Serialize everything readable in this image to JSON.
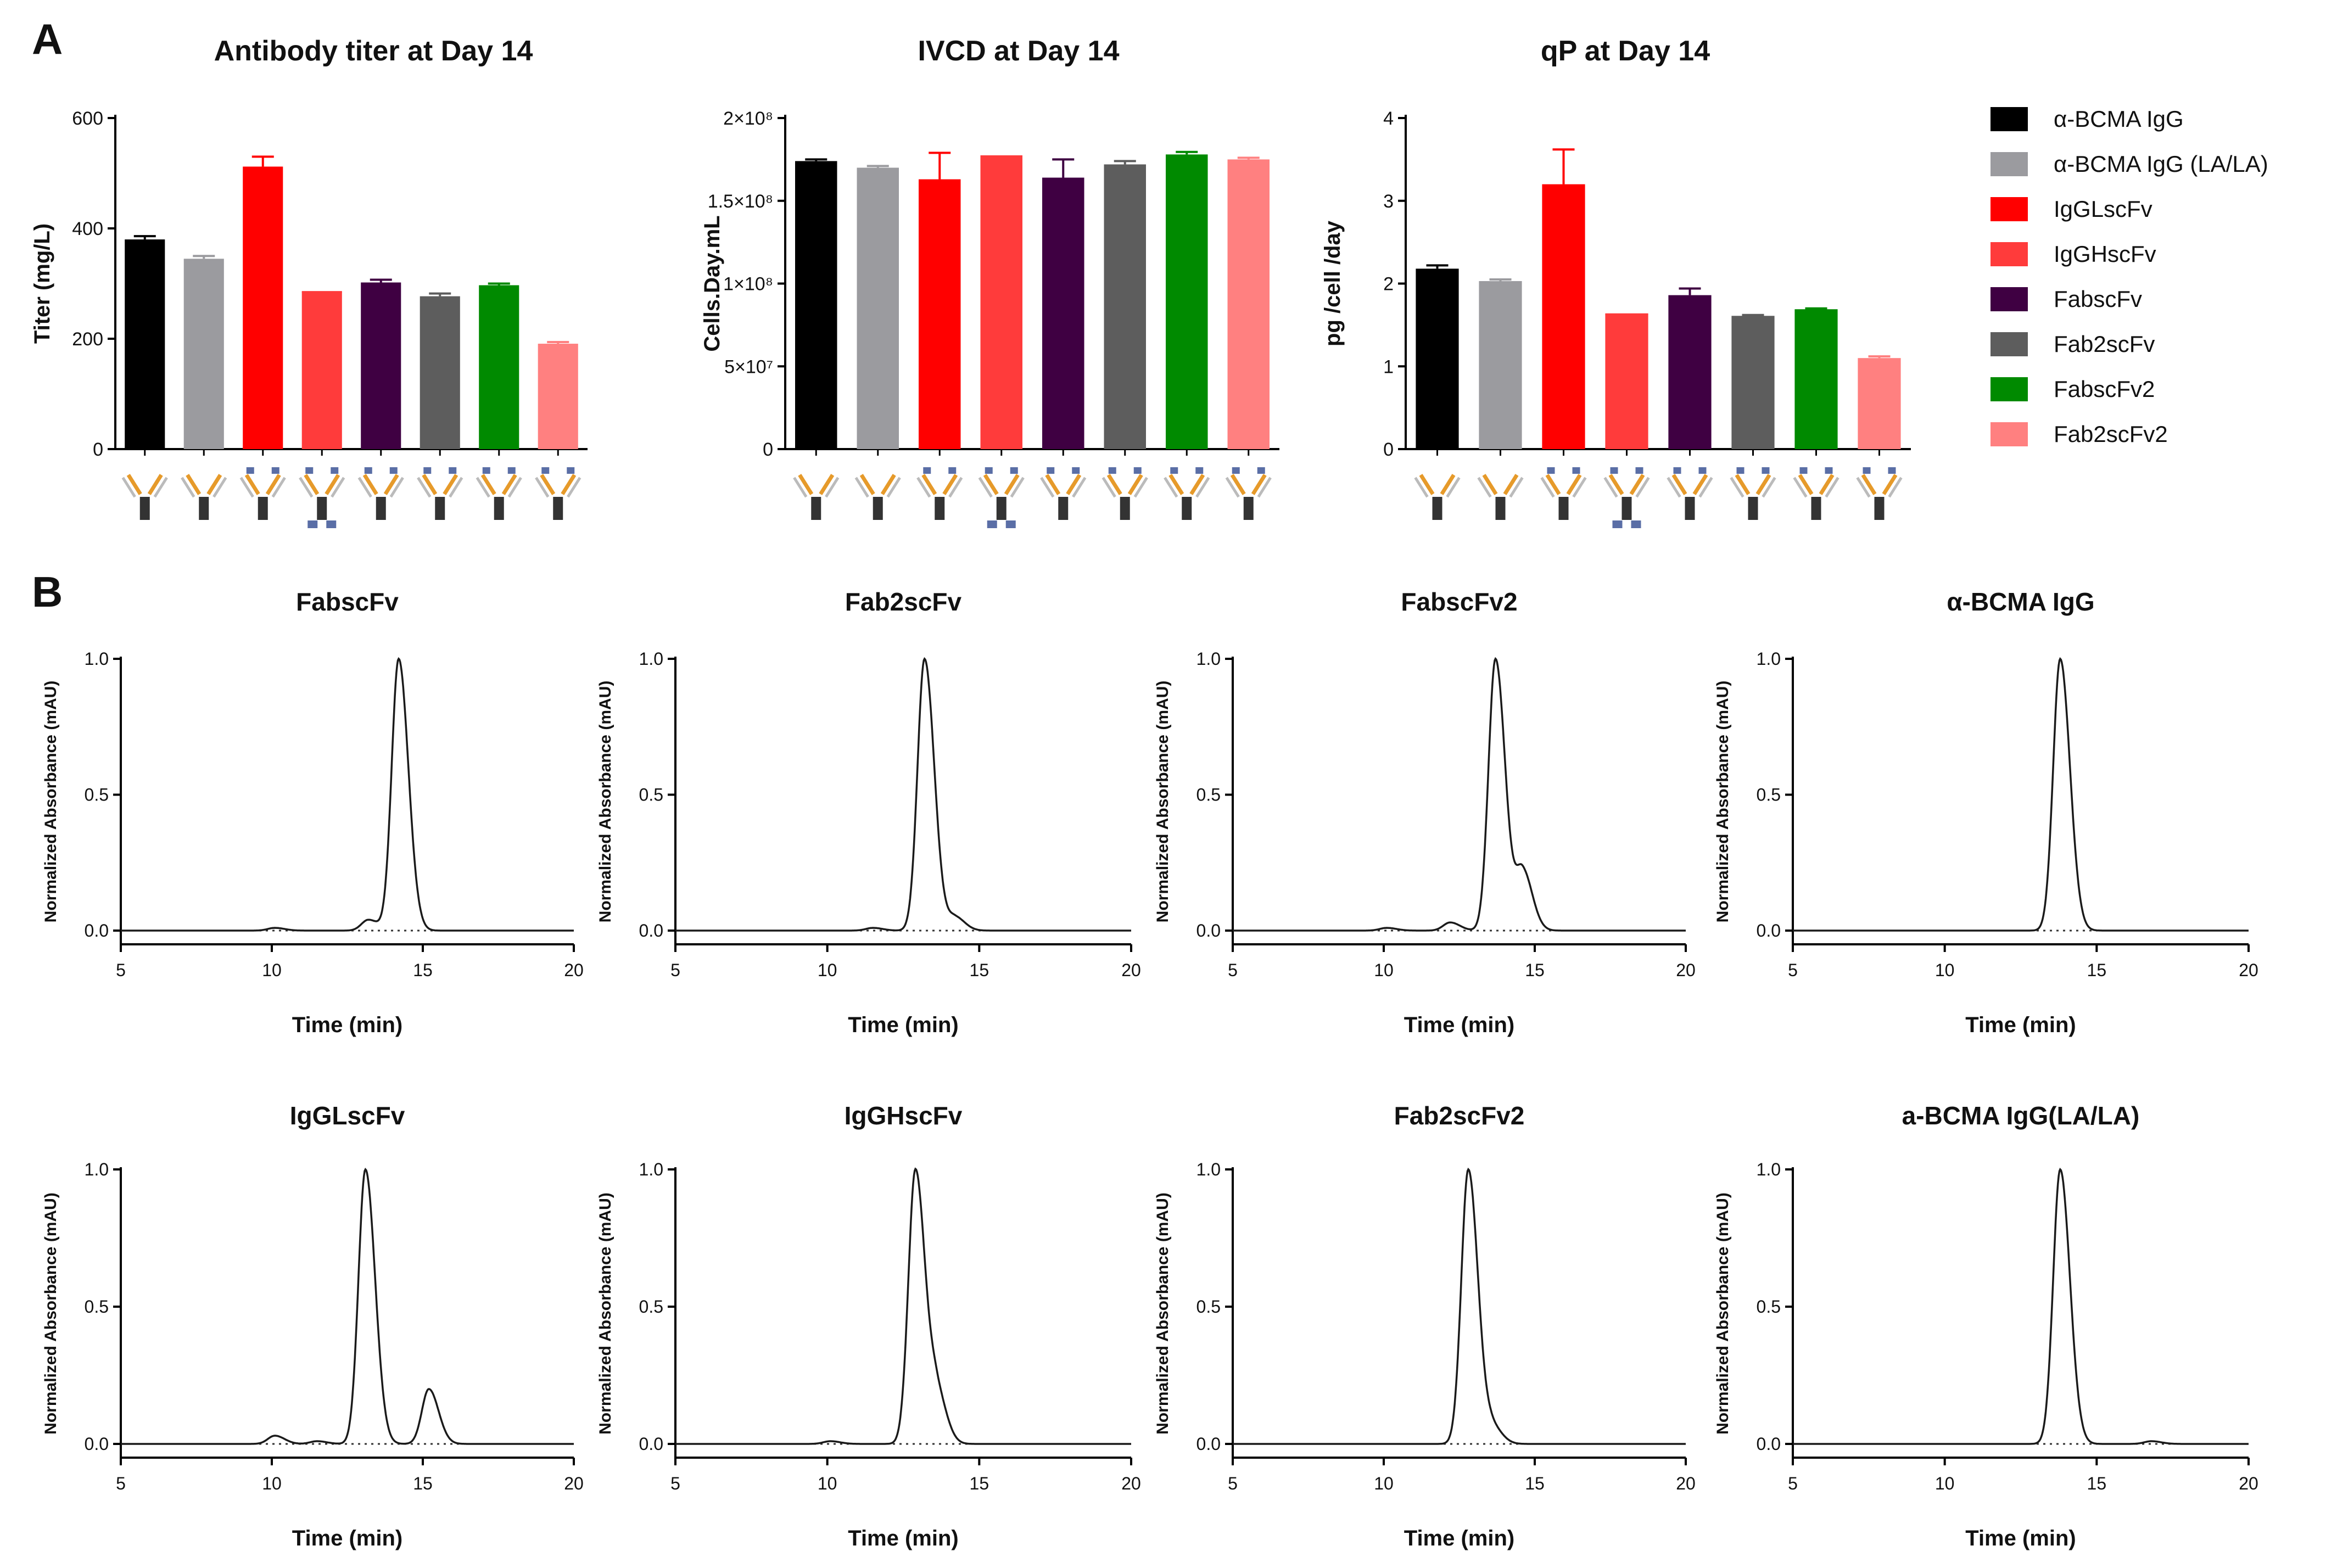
{
  "panels": {
    "a": "A",
    "b": "B"
  },
  "legend": [
    {
      "label": "α-BCMA IgG",
      "color": "#000000"
    },
    {
      "label": "α-BCMA IgG (LA/LA)",
      "color": "#9b9b9f"
    },
    {
      "label": "IgGLscFv",
      "color": "#ff0000"
    },
    {
      "label": "IgGHscFv",
      "color": "#ff3b3b"
    },
    {
      "label": "FabscFv",
      "color": "#3f0042"
    },
    {
      "label": "Fab2scFv",
      "color": "#5d5d5d"
    },
    {
      "label": "FabscFv2",
      "color": "#008a00"
    },
    {
      "label": "Fab2scFv2",
      "color": "#ff8080"
    }
  ],
  "chart_data": [
    {
      "type": "bar",
      "title": "Antibody titer at Day 14",
      "ylabel": "Titer (mg/L)",
      "xlabel": "",
      "ylim": [
        0,
        600
      ],
      "yticks": [
        0,
        200,
        400,
        600
      ],
      "ytick_labels": [
        "0",
        "200",
        "400",
        "600"
      ],
      "categories": [
        "α-BCMA IgG",
        "α-BCMA IgG (LA/LA)",
        "IgGLscFv",
        "IgGHscFv",
        "FabscFv",
        "Fab2scFv",
        "FabscFv2",
        "Fab2scFv2"
      ],
      "values": [
        380,
        345,
        512,
        285,
        302,
        277,
        297,
        191
      ],
      "errors": [
        6,
        5,
        18,
        0,
        5,
        5,
        3,
        3
      ]
    },
    {
      "type": "bar",
      "title": "IVCD at Day 14",
      "ylabel": "Cells.Day.mL",
      "xlabel": "",
      "ylim": [
        0,
        200000000
      ],
      "yticks": [
        0,
        50000000,
        100000000,
        150000000,
        200000000
      ],
      "ytick_labels": [
        "0",
        "5×10⁷",
        "1×10⁸",
        "1.5×10⁸",
        "2×10⁸"
      ],
      "categories": [
        "α-BCMA IgG",
        "α-BCMA IgG (LA/LA)",
        "IgGLscFv",
        "IgGHscFv",
        "FabscFv",
        "Fab2scFv",
        "FabscFv2",
        "Fab2scFv2"
      ],
      "values": [
        174000000,
        170000000,
        163000000,
        177000000,
        164000000,
        172000000,
        178000000,
        175000000
      ],
      "errors": [
        1000000,
        1000000,
        16000000,
        0,
        11000000,
        2000000,
        1500000,
        1000000
      ]
    },
    {
      "type": "bar",
      "title": "qP at Day 14",
      "ylabel": "pg /cell /day",
      "xlabel": "",
      "ylim": [
        0,
        4
      ],
      "yticks": [
        0,
        1,
        2,
        3,
        4
      ],
      "ytick_labels": [
        "0",
        "1",
        "2",
        "3",
        "4"
      ],
      "categories": [
        "α-BCMA IgG",
        "α-BCMA IgG (LA/LA)",
        "IgGLscFv",
        "IgGHscFv",
        "FabscFv",
        "Fab2scFv",
        "FabscFv2",
        "Fab2scFv2"
      ],
      "values": [
        2.18,
        2.03,
        3.2,
        1.63,
        1.86,
        1.61,
        1.69,
        1.1
      ],
      "errors": [
        0.04,
        0.02,
        0.42,
        0,
        0.08,
        0.01,
        0.01,
        0.02
      ]
    },
    {
      "type": "line",
      "title": "FabscFv",
      "xlabel": "Time (min)",
      "ylabel": "Normalized Absorbance (mAU)",
      "xlim": [
        5,
        20
      ],
      "ylim": [
        0,
        1
      ],
      "xticks": [
        5,
        10,
        15,
        20
      ],
      "yticks": [
        0,
        0.5,
        1
      ],
      "ytick_labels": [
        "0.0",
        "0.5",
        "1.0"
      ],
      "xtick_labels": [
        "5",
        "10",
        "15",
        "20"
      ],
      "peaks": [
        {
          "x": 14.2,
          "y": 1.0
        },
        {
          "x": 10.1,
          "y": 0.01
        },
        {
          "x": 13.2,
          "y": 0.04
        }
      ]
    },
    {
      "type": "line",
      "title": "Fab2scFv",
      "xlabel": "Time (min)",
      "ylabel": "Normalized Absorbance (mAU)",
      "xlim": [
        5,
        20
      ],
      "ylim": [
        0,
        1
      ],
      "xticks": [
        5,
        10,
        15,
        20
      ],
      "yticks": [
        0,
        0.5,
        1
      ],
      "ytick_labels": [
        "0.0",
        "0.5",
        "1.0"
      ],
      "xtick_labels": [
        "5",
        "10",
        "15",
        "20"
      ],
      "peaks": [
        {
          "x": 13.2,
          "y": 1.0
        },
        {
          "x": 14.2,
          "y": 0.05
        },
        {
          "x": 11.5,
          "y": 0.01
        }
      ]
    },
    {
      "type": "line",
      "title": "FabscFv2",
      "xlabel": "Time (min)",
      "ylabel": "Normalized Absorbance (mAU)",
      "xlim": [
        5,
        20
      ],
      "ylim": [
        0,
        1
      ],
      "xticks": [
        5,
        10,
        15,
        20
      ],
      "yticks": [
        0,
        0.5,
        1
      ],
      "ytick_labels": [
        "0.0",
        "0.5",
        "1.0"
      ],
      "xtick_labels": [
        "5",
        "10",
        "15",
        "20"
      ],
      "peaks": [
        {
          "x": 13.7,
          "y": 1.0
        },
        {
          "x": 14.6,
          "y": 0.22
        },
        {
          "x": 12.2,
          "y": 0.03
        },
        {
          "x": 10.1,
          "y": 0.01
        }
      ]
    },
    {
      "type": "line",
      "title": "α-BCMA IgG",
      "xlabel": "Time (min)",
      "ylabel": "Normalized Absorbance (mAU)",
      "xlim": [
        5,
        20
      ],
      "ylim": [
        0,
        1
      ],
      "xticks": [
        5,
        10,
        15,
        20
      ],
      "yticks": [
        0,
        0.5,
        1
      ],
      "ytick_labels": [
        "0.0",
        "0.5",
        "1.0"
      ],
      "xtick_labels": [
        "5",
        "10",
        "15",
        "20"
      ],
      "peaks": [
        {
          "x": 13.8,
          "y": 1.0
        }
      ]
    },
    {
      "type": "line",
      "title": "IgGLscFv",
      "xlabel": "Time (min)",
      "ylabel": "Normalized Absorbance (mAU)",
      "xlim": [
        5,
        20
      ],
      "ylim": [
        0,
        1
      ],
      "xticks": [
        5,
        10,
        15,
        20
      ],
      "yticks": [
        0,
        0.5,
        1
      ],
      "ytick_labels": [
        "0.0",
        "0.5",
        "1.0"
      ],
      "xtick_labels": [
        "5",
        "10",
        "15",
        "20"
      ],
      "peaks": [
        {
          "x": 13.1,
          "y": 1.0
        },
        {
          "x": 15.2,
          "y": 0.2
        },
        {
          "x": 10.1,
          "y": 0.03
        },
        {
          "x": 11.5,
          "y": 0.01
        }
      ]
    },
    {
      "type": "line",
      "title": "IgGHscFv",
      "xlabel": "Time (min)",
      "ylabel": "Normalized Absorbance (mAU)",
      "xlim": [
        5,
        20
      ],
      "ylim": [
        0,
        1
      ],
      "xticks": [
        5,
        10,
        15,
        20
      ],
      "yticks": [
        0,
        0.5,
        1
      ],
      "ytick_labels": [
        "0.0",
        "0.5",
        "1.0"
      ],
      "xtick_labels": [
        "5",
        "10",
        "15",
        "20"
      ],
      "peaks": [
        {
          "x": 12.9,
          "y": 1.0
        },
        {
          "x": 13.6,
          "y": 0.18
        },
        {
          "x": 10.1,
          "y": 0.01
        }
      ]
    },
    {
      "type": "line",
      "title": "Fab2scFv2",
      "xlabel": "Time (min)",
      "ylabel": "Normalized Absorbance (mAU)",
      "xlim": [
        5,
        20
      ],
      "ylim": [
        0,
        1
      ],
      "xticks": [
        5,
        10,
        15,
        20
      ],
      "yticks": [
        0,
        0.5,
        1
      ],
      "ytick_labels": [
        "0.0",
        "0.5",
        "1.0"
      ],
      "xtick_labels": [
        "5",
        "10",
        "15",
        "20"
      ],
      "peaks": [
        {
          "x": 12.8,
          "y": 1.0
        },
        {
          "x": 13.6,
          "y": 0.06
        }
      ]
    },
    {
      "type": "line",
      "title": "a-BCMA IgG(LA/LA)",
      "xlabel": "Time (min)",
      "ylabel": "Normalized Absorbance (mAU)",
      "xlim": [
        5,
        20
      ],
      "ylim": [
        0,
        1
      ],
      "xticks": [
        5,
        10,
        15,
        20
      ],
      "yticks": [
        0,
        0.5,
        1
      ],
      "ytick_labels": [
        "0.0",
        "0.5",
        "1.0"
      ],
      "xtick_labels": [
        "5",
        "10",
        "15",
        "20"
      ],
      "peaks": [
        {
          "x": 13.8,
          "y": 1.0
        },
        {
          "x": 16.8,
          "y": 0.01
        }
      ]
    }
  ]
}
